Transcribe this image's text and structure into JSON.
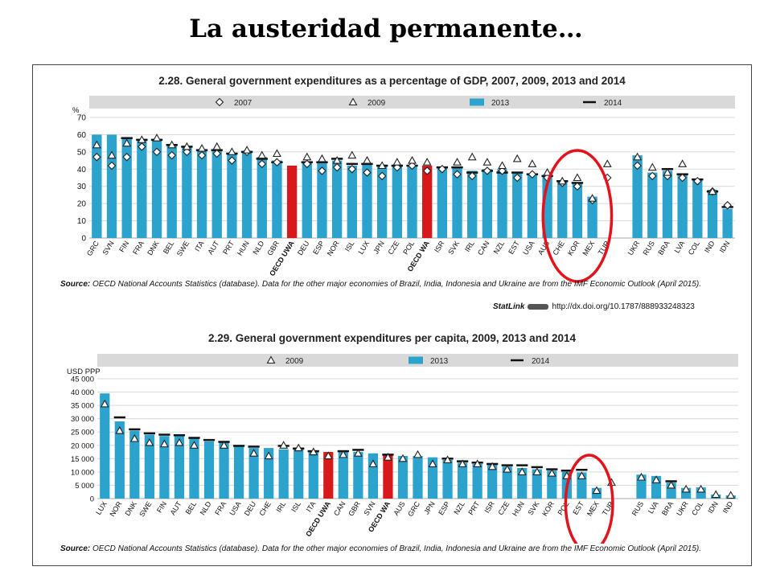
{
  "slide": {
    "title": "La austeridad permanente…"
  },
  "colors": {
    "bar": "#2ba3cc",
    "highlight": "#d7191c",
    "band": "#d9d9d9",
    "circle": "#e3121b",
    "marker": "#222222"
  },
  "chart_data": [
    {
      "id": "fig228",
      "type": "bar",
      "title": "2.28. General government expenditures as a percentage of GDP, 2007, 2009, 2013 and 2014",
      "y_unit": "%",
      "ylim": [
        0,
        70
      ],
      "yticks": [
        0,
        10,
        20,
        30,
        40,
        50,
        60,
        70
      ],
      "ytick_labels": [
        "0",
        "10",
        "20",
        "30",
        "40",
        "50",
        "60",
        "70"
      ],
      "grid": true,
      "legend": [
        "2007",
        "2009",
        "2013",
        "2014"
      ],
      "categories": [
        "GRC",
        "SVN",
        "FIN",
        "FRA",
        "DNK",
        "BEL",
        "SWE",
        "ITA",
        "AUT",
        "PRT",
        "HUN",
        "NLD",
        "GBR",
        "OECD UWA",
        "DEU",
        "ESP",
        "NOR",
        "ISL",
        "LUX",
        "JPN",
        "CZE",
        "POL",
        "OECD WA",
        "ISR",
        "SVK",
        "IRL",
        "CAN",
        "NZL",
        "EST",
        "USA",
        "AUS",
        "CHE",
        "KOR",
        "MEX",
        "TUR",
        "",
        "UKR",
        "RUS",
        "BRA",
        "LVA",
        "COL",
        "IND",
        "IDN"
      ],
      "highlight": [
        "OECD UWA",
        "OECD WA"
      ],
      "series": [
        {
          "name": "2013",
          "values": [
            60,
            60,
            58,
            57,
            57,
            54,
            53,
            51,
            51,
            49,
            50,
            47,
            45,
            42,
            44,
            44,
            45,
            42,
            43,
            42,
            42,
            42,
            42,
            41,
            41,
            39,
            40,
            40,
            38,
            37,
            36,
            33,
            32,
            24,
            null,
            null,
            48,
            38,
            39,
            37,
            34,
            28,
            17
          ]
        },
        {
          "name": "2014",
          "values": [
            null,
            null,
            58,
            57,
            57,
            54,
            53,
            51,
            51,
            49,
            50,
            46,
            44,
            null,
            44,
            44,
            46,
            43,
            43,
            42,
            42,
            42,
            null,
            41,
            41,
            38,
            39,
            38,
            38,
            37,
            36,
            33,
            32,
            null,
            null,
            null,
            null,
            null,
            40,
            37,
            34,
            27,
            18
          ]
        },
        {
          "name": "2007",
          "values": [
            47,
            42,
            47,
            53,
            50,
            48,
            50,
            48,
            49,
            45,
            50,
            43,
            44,
            null,
            43,
            39,
            41,
            40,
            38,
            36,
            41,
            42,
            39,
            40,
            37,
            36,
            39,
            39,
            35,
            37,
            35,
            32,
            30,
            22,
            35,
            null,
            42,
            36,
            36,
            35,
            33,
            27,
            19
          ]
        },
        {
          "name": "2009",
          "values": [
            54,
            48,
            55,
            57,
            58,
            54,
            53,
            52,
            53,
            50,
            51,
            48,
            49,
            null,
            47,
            46,
            45,
            48,
            45,
            42,
            44,
            45,
            44,
            null,
            44,
            47,
            44,
            42,
            46,
            43,
            38,
            33,
            35,
            23,
            43,
            null,
            47,
            41,
            38,
            43,
            null,
            27,
            null
          ]
        }
      ]
    },
    {
      "id": "fig229",
      "type": "bar",
      "title": "2.29. General government expenditures per capita, 2009, 2013 and 2014",
      "y_unit": "USD PPP",
      "ylim": [
        0,
        45000
      ],
      "yticks": [
        0,
        5000,
        10000,
        15000,
        20000,
        25000,
        30000,
        35000,
        40000,
        45000
      ],
      "ytick_labels": [
        "0",
        "5 000",
        "10 000",
        "15 000",
        "20 000",
        "25 000",
        "30 000",
        "35 000",
        "40 000",
        "45 000"
      ],
      "grid": true,
      "legend": [
        "2009",
        "2013",
        "2014"
      ],
      "categories": [
        "LUX",
        "NOR",
        "DNK",
        "SWE",
        "FIN",
        "AUT",
        "BEL",
        "NLD",
        "FRA",
        "USA",
        "DEU",
        "CHE",
        "IRL",
        "ISL",
        "ITA",
        "OECD UWA",
        "CAN",
        "GBR",
        "SVN",
        "OECD WA",
        "AUS",
        "GRC",
        "JPN",
        "ESP",
        "NZL",
        "PRT",
        "ISR",
        "CZE",
        "HUN",
        "SVK",
        "KOR",
        "POL",
        "EST",
        "MEX",
        "TUR",
        "",
        "RUS",
        "LVA",
        "BRA",
        "UKR",
        "COL",
        "IDN",
        "IND"
      ],
      "highlight": [
        "OECD UWA",
        "OECD WA"
      ],
      "series": [
        {
          "name": "2013",
          "values": [
            39500,
            29000,
            25500,
            24000,
            23500,
            23500,
            22500,
            21500,
            21000,
            19500,
            19000,
            19000,
            18500,
            18500,
            17500,
            17500,
            17500,
            17500,
            17000,
            16500,
            16000,
            16000,
            15500,
            14500,
            13500,
            13000,
            12800,
            12000,
            11500,
            11000,
            10500,
            10000,
            9800,
            4000,
            null,
            null,
            9000,
            8500,
            6000,
            4000,
            4200,
            1500,
            1200
          ]
        },
        {
          "name": "2014",
          "values": [
            null,
            30500,
            26000,
            24500,
            24000,
            23800,
            22800,
            22000,
            21300,
            19800,
            19500,
            null,
            19800,
            18800,
            17800,
            null,
            17800,
            18300,
            null,
            16500,
            null,
            null,
            null,
            15000,
            14000,
            13500,
            13000,
            12500,
            12500,
            11800,
            11000,
            10500,
            10800,
            null,
            null,
            null,
            null,
            null,
            6500,
            null,
            null,
            null,
            null
          ]
        },
        {
          "name": "2009",
          "values": [
            35500,
            25500,
            22500,
            21000,
            20500,
            21000,
            20000,
            null,
            20000,
            null,
            17000,
            16000,
            20000,
            19000,
            17500,
            16000,
            16500,
            17000,
            13000,
            15500,
            15000,
            16500,
            13000,
            14500,
            13000,
            13000,
            12000,
            11000,
            10000,
            10000,
            9500,
            8500,
            8500,
            3000,
            6000,
            null,
            8000,
            7000,
            5000,
            3500,
            3500,
            1500,
            1200
          ]
        }
      ]
    }
  ],
  "panels": {
    "p1": {
      "title": "2.28. General government expenditures as a percentage of GDP, 2007, 2009, 2013 and 2014",
      "source_label": "Source:",
      "source_text": " OECD National Accounts Statistics (database). Data for the other major economies of Brazil, India, Indonesia and Ukraine are from the IMF Economic Outlook (April 2015).",
      "statlink_label": "StatLink",
      "statlink_url": "http://dx.doi.org/10.1787/888933248323"
    },
    "p2": {
      "title": "2.29. General government expenditures per capita, 2009, 2013 and 2014",
      "source_label": "Source:",
      "source_text": " OECD National Accounts Statistics (database). Data for the other major economies of Brazil, India, Indonesia and Ukraine are from the IMF Economic Outlook (April 2015)."
    }
  }
}
